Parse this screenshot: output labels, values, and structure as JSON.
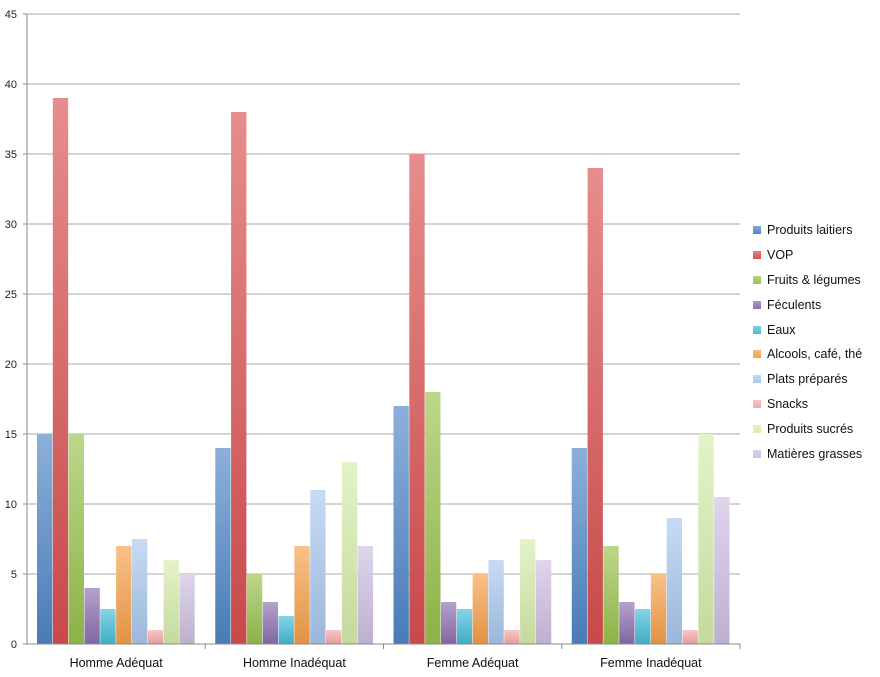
{
  "chart_data": {
    "type": "bar",
    "categories": [
      "Homme Adéquat",
      "Homme Inadéquat",
      "Femme Adéquat",
      "Femme Inadéquat"
    ],
    "ylim": [
      0,
      45
    ],
    "yticks": [
      0,
      5,
      10,
      15,
      20,
      25,
      30,
      35,
      40,
      45
    ],
    "grid": true,
    "legend_position": "right",
    "series": [
      {
        "name": "Produits laitiers",
        "color": "#4f86c6",
        "values": [
          15,
          14,
          17,
          14
        ]
      },
      {
        "name": "VOP",
        "color": "#d94f4f",
        "values": [
          39,
          38,
          35,
          34
        ]
      },
      {
        "name": "Fruits & légumes",
        "color": "#98c24c",
        "values": [
          15,
          5,
          18,
          7
        ]
      },
      {
        "name": "Féculents",
        "color": "#8c6fb0",
        "values": [
          4,
          3,
          3,
          3
        ]
      },
      {
        "name": "Eaux",
        "color": "#45bcd8",
        "values": [
          2.5,
          2,
          2.5,
          2.5
        ]
      },
      {
        "name": "Alcools, café, thé",
        "color": "#f5a04a",
        "values": [
          7,
          7,
          5,
          5
        ]
      },
      {
        "name": "Plats préparés",
        "color": "#a9c7ee",
        "values": [
          7.5,
          11,
          6,
          9
        ]
      },
      {
        "name": "Snacks",
        "color": "#f5a9a9",
        "values": [
          1,
          1,
          1,
          1
        ]
      },
      {
        "name": "Produits sucrés",
        "color": "#d6ecab",
        "values": [
          6,
          13,
          7.5,
          15
        ]
      },
      {
        "name": "Matières grasses",
        "color": "#cdbfe2",
        "values": [
          5,
          7,
          6,
          10.5
        ]
      }
    ]
  }
}
